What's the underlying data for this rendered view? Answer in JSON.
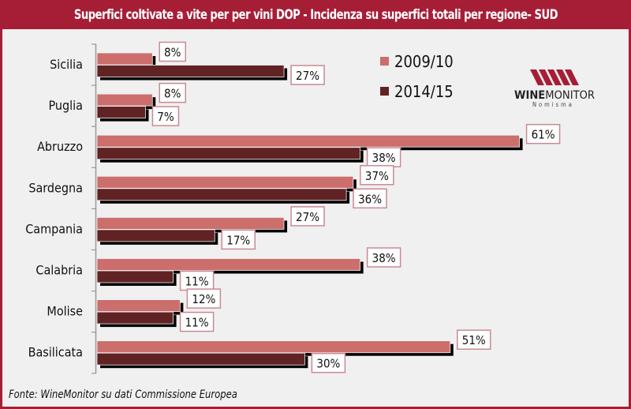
{
  "title": "Superfici coltivate a vite per per vini DOP   - Incidenza su superfici totali  per regione- SUD",
  "source": "Fonte: WineMonitor su dati Commissione Europea",
  "logo": {
    "name": "WINEMONITOR",
    "sub": "Nomisma",
    "bold_part": "WINE",
    "light_part": "MONITOR"
  },
  "colors": {
    "brand": "#a61e36",
    "series_2009": "#cc6e6c",
    "series_2014": "#612224",
    "label_border": "#c98a94"
  },
  "chart_data": {
    "type": "bar",
    "orientation": "horizontal",
    "title": "Superfici coltivate a vite per per vini DOP   - Incidenza su superfici totali  per regione- SUD",
    "xlabel": "",
    "ylabel": "",
    "xlim": [
      0,
      70
    ],
    "grid": false,
    "legend_position": "top-right",
    "categories": [
      "Sicilia",
      "Puglia",
      "Abruzzo",
      "Sardegna",
      "Campania",
      "Calabria",
      "Molise",
      "Basilicata"
    ],
    "series": [
      {
        "name": "2009/10",
        "values": [
          8,
          8,
          61,
          37,
          27,
          38,
          12,
          51
        ],
        "labels": [
          "8%",
          "8%",
          "61%",
          "37%",
          "27%",
          "38%",
          "12%",
          "51%"
        ]
      },
      {
        "name": "2014/15",
        "values": [
          27,
          7,
          38,
          36,
          17,
          11,
          11,
          30
        ],
        "labels": [
          "27%",
          "7%",
          "38%",
          "36%",
          "17%",
          "11%",
          "11%",
          "30%"
        ]
      }
    ]
  }
}
